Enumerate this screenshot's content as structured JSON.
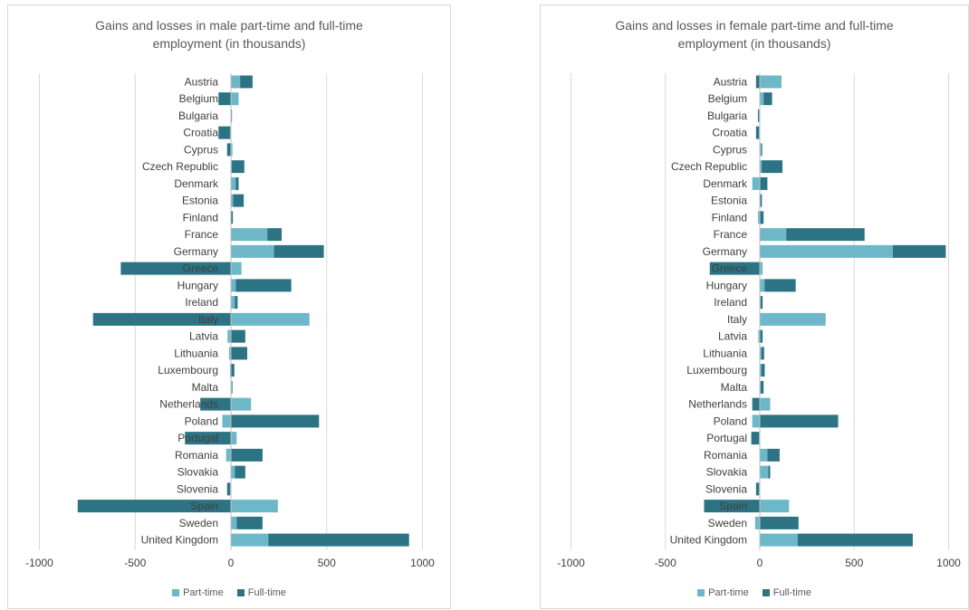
{
  "colors": {
    "part_time": "#6db8c8",
    "full_time": "#2c7384",
    "grid": "#d9d9d9",
    "axis": "#bfbfbf"
  },
  "chart_data": [
    {
      "type": "bar",
      "orientation": "horizontal",
      "stacked": "diverging",
      "title": "Gains and losses in male part-time and full-time employment (in thousands)",
      "title_lines": [
        "Gains and losses in male part-time and full-time",
        "employment (in thousands)"
      ],
      "xlim": [
        -1000,
        1000
      ],
      "xticks": [
        -1000,
        -500,
        0,
        500,
        1000
      ],
      "xtick_labels": [
        "-1000",
        "-500",
        "0",
        "500",
        "1000"
      ],
      "grid": true,
      "legend_position": "bottom",
      "categories": [
        "Austria",
        "Belgium",
        "Bulgaria",
        "Croatia",
        "Cyprus",
        "Czech Republic",
        "Denmark",
        "Estonia",
        "Finland",
        "France",
        "Germany",
        "Greece",
        "Hungary",
        "Ireland",
        "Italy",
        "Latvia",
        "Lithuania",
        "Luxembourg",
        "Malta",
        "Netherlands",
        "Poland",
        "Portugal",
        "Romania",
        "Slovakia",
        "Slovenia",
        "Spain",
        "Sweden",
        "United Kingdom"
      ],
      "series": [
        {
          "name": "Part-time",
          "values": [
            48,
            40,
            3,
            -5,
            8,
            5,
            25,
            12,
            2,
            190,
            225,
            55,
            25,
            20,
            410,
            -18,
            -10,
            -5,
            5,
            105,
            -45,
            30,
            -25,
            20,
            -5,
            245,
            30,
            195
          ]
        },
        {
          "name": "Full-time",
          "values": [
            65,
            -65,
            2,
            -60,
            -20,
            65,
            15,
            55,
            8,
            75,
            260,
            -575,
            290,
            15,
            -720,
            75,
            85,
            18,
            3,
            -160,
            460,
            -240,
            165,
            55,
            -15,
            -800,
            135,
            735
          ]
        }
      ]
    },
    {
      "type": "bar",
      "orientation": "horizontal",
      "stacked": "diverging",
      "title": "Gains and losses in female part-time and full-time employment (in thousands)",
      "title_lines": [
        "Gains and losses in female part-time and full-time",
        "employment (in thousands)"
      ],
      "xlim": [
        -1000,
        1000
      ],
      "xticks": [
        -1000,
        -500,
        0,
        500,
        1000
      ],
      "xtick_labels": [
        "-1000",
        "-500",
        "0",
        "500",
        "1000"
      ],
      "grid": true,
      "legend_position": "bottom",
      "categories": [
        "Austria",
        "Belgium",
        "Bulgaria",
        "Croatia",
        "Cyprus",
        "Czech Republic",
        "Denmark",
        "Estonia",
        "Finland",
        "France",
        "Germany",
        "Greece",
        "Hungary",
        "Ireland",
        "Italy",
        "Latvia",
        "Lithuania",
        "Luxembourg",
        "Malta",
        "Netherlands",
        "Poland",
        "Portugal",
        "Romania",
        "Slovakia",
        "Slovenia",
        "Spain",
        "Sweden",
        "United Kingdom"
      ],
      "series": [
        {
          "name": "Part-time",
          "values": [
            115,
            20,
            -5,
            -5,
            8,
            10,
            -40,
            3,
            -10,
            140,
            705,
            15,
            25,
            5,
            345,
            -8,
            8,
            8,
            5,
            55,
            -40,
            -5,
            40,
            45,
            -5,
            155,
            -25,
            200
          ]
        },
        {
          "name": "Full-time",
          "values": [
            -20,
            45,
            -5,
            -15,
            5,
            110,
            40,
            8,
            20,
            415,
            280,
            -265,
            165,
            10,
            2,
            15,
            15,
            18,
            15,
            -40,
            415,
            -40,
            65,
            10,
            -15,
            -295,
            205,
            610
          ]
        }
      ]
    }
  ]
}
